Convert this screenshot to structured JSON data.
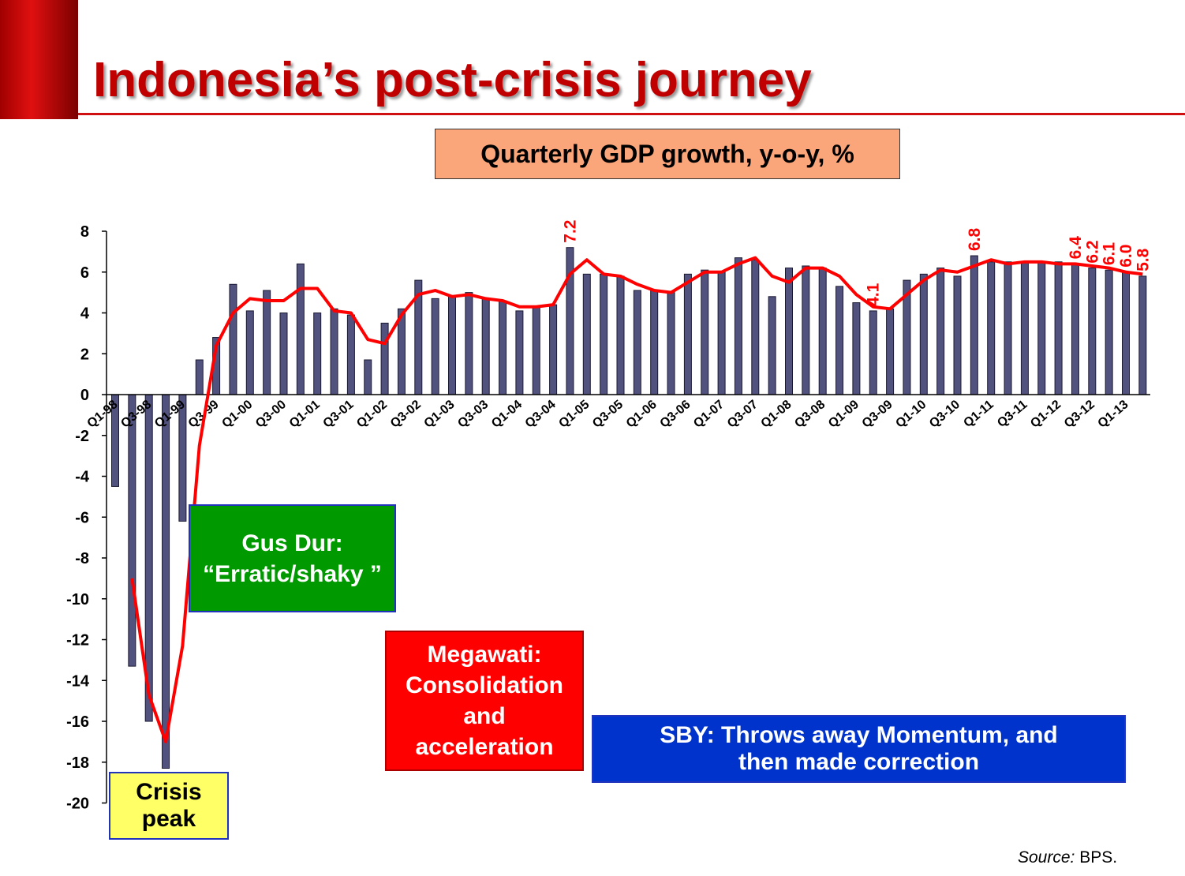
{
  "chart_data": {
    "type": "bar",
    "title": "Indonesia’s post-crisis journey",
    "subtitle": "Quarterly GDP growth, y-o-y, %",
    "categories": [
      "Q1-98",
      null,
      "Q3-98",
      null,
      "Q1-99",
      null,
      "Q3-99",
      null,
      "Q1-00",
      null,
      "Q3-00",
      null,
      "Q1-01",
      null,
      "Q3-01",
      null,
      "Q1-02",
      null,
      "Q3-02",
      null,
      "Q1-03",
      null,
      "Q3-03",
      null,
      "Q1-04",
      null,
      "Q3-04",
      null,
      "Q1-05",
      null,
      "Q3-05",
      null,
      "Q1-06",
      null,
      "Q3-06",
      null,
      "Q1-07",
      null,
      "Q3-07",
      null,
      "Q1-08",
      null,
      "Q3-08",
      null,
      "Q1-09",
      null,
      "Q3-09",
      null,
      "Q1-10",
      null,
      "Q3-10",
      null,
      "Q1-11",
      null,
      "Q3-11",
      null,
      "Q1-12",
      null,
      "Q3-12",
      null,
      "Q1-13",
      null
    ],
    "series": [
      {
        "type": "bar",
        "color": "#52527f",
        "values": [
          -4.5,
          -13.3,
          -16.0,
          -18.3,
          -6.2,
          1.7,
          2.8,
          5.4,
          4.1,
          5.1,
          4.0,
          6.4,
          4.0,
          4.2,
          3.9,
          1.7,
          3.5,
          4.2,
          5.6,
          4.7,
          4.8,
          5.0,
          4.7,
          4.6,
          4.1,
          4.3,
          4.4,
          7.2,
          5.9,
          5.9,
          5.8,
          5.1,
          5.1,
          5.0,
          5.9,
          6.1,
          6.0,
          6.7,
          6.6,
          4.8,
          6.2,
          6.3,
          6.2,
          5.3,
          4.5,
          4.1,
          4.2,
          5.6,
          5.9,
          6.2,
          5.8,
          6.8,
          6.5,
          6.5,
          6.5,
          6.5,
          6.5,
          6.4,
          6.2,
          6.1,
          6.0,
          5.8
        ],
        "value_labels": [
          null,
          null,
          null,
          null,
          null,
          null,
          null,
          null,
          null,
          null,
          null,
          null,
          null,
          null,
          null,
          null,
          null,
          null,
          null,
          null,
          null,
          null,
          null,
          null,
          null,
          null,
          null,
          "7.2",
          null,
          null,
          null,
          null,
          null,
          null,
          null,
          null,
          null,
          null,
          null,
          null,
          null,
          null,
          null,
          null,
          null,
          "4.1",
          null,
          null,
          null,
          null,
          null,
          "6.8",
          null,
          null,
          null,
          null,
          null,
          "6.4",
          "6.2",
          "6.1",
          "6.0",
          "5.8"
        ]
      },
      {
        "type": "line",
        "color": "#ff0000",
        "values": [
          null,
          -9.0,
          -14.7,
          -17.0,
          -12.3,
          -2.5,
          2.4,
          4.0,
          4.7,
          4.6,
          4.6,
          5.2,
          5.2,
          4.1,
          4.0,
          2.7,
          2.5,
          3.9,
          4.9,
          5.1,
          4.8,
          4.9,
          4.7,
          4.6,
          4.3,
          4.3,
          4.4,
          5.9,
          6.6,
          5.9,
          5.8,
          5.4,
          5.1,
          5.0,
          5.5,
          6.0,
          6.0,
          6.4,
          6.7,
          5.8,
          5.5,
          6.2,
          6.2,
          5.8,
          4.9,
          4.3,
          4.2,
          4.9,
          5.6,
          6.1,
          6.0,
          6.3,
          6.6,
          6.4,
          6.5,
          6.5,
          6.4,
          6.4,
          6.3,
          6.2,
          6.0,
          5.9
        ]
      }
    ],
    "ylim": [
      -20,
      8
    ],
    "yticks": [
      -20,
      -18,
      -16,
      -14,
      -12,
      -10,
      -8,
      -6,
      -4,
      -2,
      0,
      2,
      4,
      6,
      8
    ],
    "annotations": [
      "Crisis peak",
      "Gus Dur: “Erratic/shaky ”",
      "Megawati: Consolidation and acceleration",
      "SBY: Throws away Momentum, and then made correction"
    ],
    "source": {
      "label": "Source:",
      "text": "BPS."
    }
  }
}
